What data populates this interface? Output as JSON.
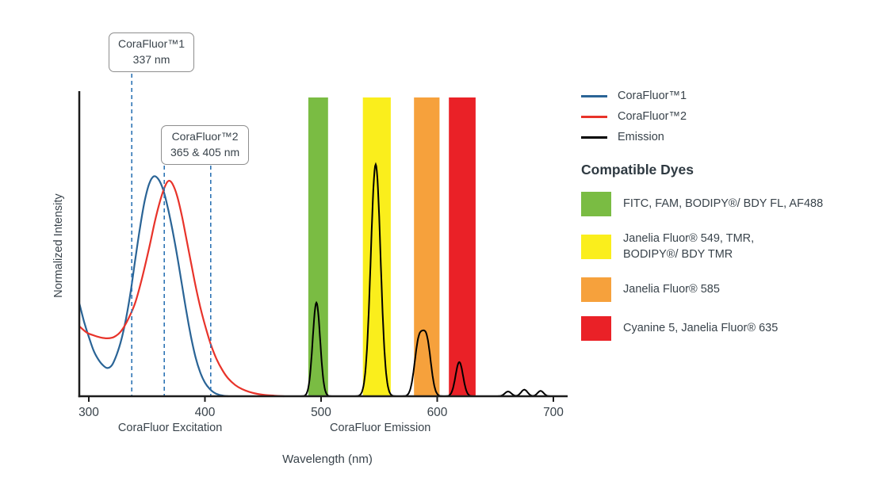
{
  "legend": {
    "items": [
      {
        "label": "CoraFluor™1",
        "color": "#2A6496"
      },
      {
        "label": "CoraFluor™2",
        "color": "#E8332A"
      },
      {
        "label": "Emission",
        "color": "#000000"
      }
    ]
  },
  "compatible_dyes": {
    "title": "Compatible Dyes",
    "items": [
      {
        "color": "#7ABC43",
        "lines": [
          "FITC, FAM, BODIPY®/ BDY FL, AF488"
        ]
      },
      {
        "color": "#FAEE1C",
        "lines": [
          "Janelia Fluor® 549, TMR,",
          "BODIPY®/ BDY TMR"
        ]
      },
      {
        "color": "#F6A13C",
        "lines": [
          "Janelia Fluor® 585"
        ]
      },
      {
        "color": "#EA2127",
        "lines": [
          "Cyanine 5, Janelia Fluor® 635"
        ]
      }
    ]
  },
  "annotations": [
    {
      "lines": [
        "CoraFluor™1",
        "337 nm"
      ],
      "marker_wavelengths": [
        337
      ]
    },
    {
      "lines": [
        "CoraFluor™2",
        "365 & 405 nm"
      ],
      "marker_wavelengths": [
        365,
        405
      ]
    }
  ],
  "chart_data": {
    "type": "line",
    "title": "",
    "xlabel": "Wavelength (nm)",
    "ylabel": "Normalized Intensity",
    "xlim": [
      292,
      712
    ],
    "ylim": [
      0,
      1
    ],
    "grid": false,
    "legend_position": "outside-top-right",
    "x_ticks": [
      300,
      400,
      500,
      600,
      700
    ],
    "x_axis_sublabels": [
      {
        "text": "CoraFluor Excitation",
        "x": 370
      },
      {
        "text": "CoraFluor Emission",
        "x": 551
      }
    ],
    "excitation_markers": [
      337,
      365,
      405
    ],
    "marker_color": "#2E74B5",
    "bands": [
      {
        "name": "fitc-fam-bodipy-af488",
        "color": "#7ABC43",
        "x0": 489,
        "x1": 506
      },
      {
        "name": "jf549-tmr-bodipy-tmr",
        "color": "#FAEE1C",
        "x0": 536,
        "x1": 560
      },
      {
        "name": "jf585",
        "color": "#F6A13C",
        "x0": 580,
        "x1": 602
      },
      {
        "name": "cy5-jf635",
        "color": "#EA2127",
        "x0": 610,
        "x1": 633
      }
    ],
    "series": [
      {
        "name": "CoraFluor™1",
        "id": "corafluor1-excitation-curve",
        "color": "#2A6496",
        "points": [
          [
            292,
            0.31
          ],
          [
            296,
            0.25
          ],
          [
            300,
            0.2
          ],
          [
            304,
            0.155
          ],
          [
            308,
            0.125
          ],
          [
            312,
            0.105
          ],
          [
            316,
            0.095
          ],
          [
            320,
            0.105
          ],
          [
            324,
            0.14
          ],
          [
            328,
            0.19
          ],
          [
            332,
            0.26
          ],
          [
            336,
            0.35
          ],
          [
            340,
            0.46
          ],
          [
            344,
            0.565
          ],
          [
            348,
            0.655
          ],
          [
            352,
            0.715
          ],
          [
            356,
            0.74
          ],
          [
            360,
            0.73
          ],
          [
            364,
            0.695
          ],
          [
            368,
            0.635
          ],
          [
            372,
            0.56
          ],
          [
            376,
            0.475
          ],
          [
            380,
            0.38
          ],
          [
            384,
            0.285
          ],
          [
            388,
            0.2
          ],
          [
            392,
            0.13
          ],
          [
            396,
            0.08
          ],
          [
            400,
            0.046
          ],
          [
            404,
            0.025
          ],
          [
            408,
            0.012
          ],
          [
            412,
            0.005
          ],
          [
            416,
            0.002
          ],
          [
            420,
            0.0
          ]
        ]
      },
      {
        "name": "CoraFluor™2",
        "id": "corafluor2-excitation-curve",
        "color": "#E8332A",
        "points": [
          [
            292,
            0.235
          ],
          [
            298,
            0.215
          ],
          [
            304,
            0.205
          ],
          [
            310,
            0.198
          ],
          [
            316,
            0.195
          ],
          [
            322,
            0.2
          ],
          [
            328,
            0.22
          ],
          [
            334,
            0.26
          ],
          [
            340,
            0.315
          ],
          [
            346,
            0.4
          ],
          [
            352,
            0.5
          ],
          [
            357,
            0.59
          ],
          [
            362,
            0.665
          ],
          [
            366,
            0.71
          ],
          [
            369,
            0.725
          ],
          [
            372,
            0.715
          ],
          [
            376,
            0.675
          ],
          [
            380,
            0.61
          ],
          [
            384,
            0.53
          ],
          [
            388,
            0.45
          ],
          [
            392,
            0.37
          ],
          [
            396,
            0.3
          ],
          [
            400,
            0.24
          ],
          [
            405,
            0.175
          ],
          [
            410,
            0.125
          ],
          [
            415,
            0.088
          ],
          [
            420,
            0.06
          ],
          [
            426,
            0.038
          ],
          [
            432,
            0.024
          ],
          [
            438,
            0.015
          ],
          [
            445,
            0.008
          ],
          [
            452,
            0.004
          ],
          [
            460,
            0.002
          ],
          [
            468,
            0.0
          ]
        ]
      },
      {
        "name": "Emission",
        "id": "emission-curve",
        "color": "#000000",
        "peaks": [
          {
            "center": 496,
            "height": 0.315,
            "sigma": 3.2
          },
          {
            "center": 547,
            "height": 0.78,
            "sigma": 4.2
          },
          {
            "center": 584,
            "height": 0.175,
            "sigma": 3.6
          },
          {
            "center": 591,
            "height": 0.18,
            "sigma": 3.6
          },
          {
            "center": 619,
            "height": 0.115,
            "sigma": 3.2
          },
          {
            "center": 661,
            "height": 0.016,
            "sigma": 2.8
          },
          {
            "center": 675,
            "height": 0.022,
            "sigma": 2.8
          },
          {
            "center": 689,
            "height": 0.018,
            "sigma": 2.6
          }
        ]
      }
    ]
  }
}
